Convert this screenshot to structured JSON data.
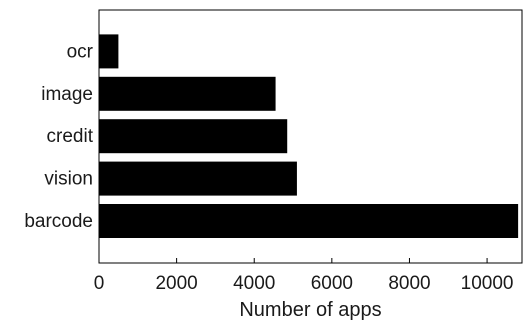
{
  "chart_data": {
    "type": "bar",
    "orientation": "horizontal",
    "categories": [
      "barcode",
      "vision",
      "credit",
      "image",
      "ocr"
    ],
    "values": [
      10800,
      5100,
      4850,
      4550,
      500
    ],
    "xlabel": "Number of apps",
    "ylabel": "",
    "xlim": [
      0,
      10900
    ],
    "xticks": [
      0,
      2000,
      4000,
      6000,
      8000,
      10000
    ],
    "xtick_labels": [
      "0",
      "2000",
      "4000",
      "6000",
      "8000",
      "10000"
    ],
    "bar_color": "#000000",
    "grid": false,
    "legend": false
  }
}
